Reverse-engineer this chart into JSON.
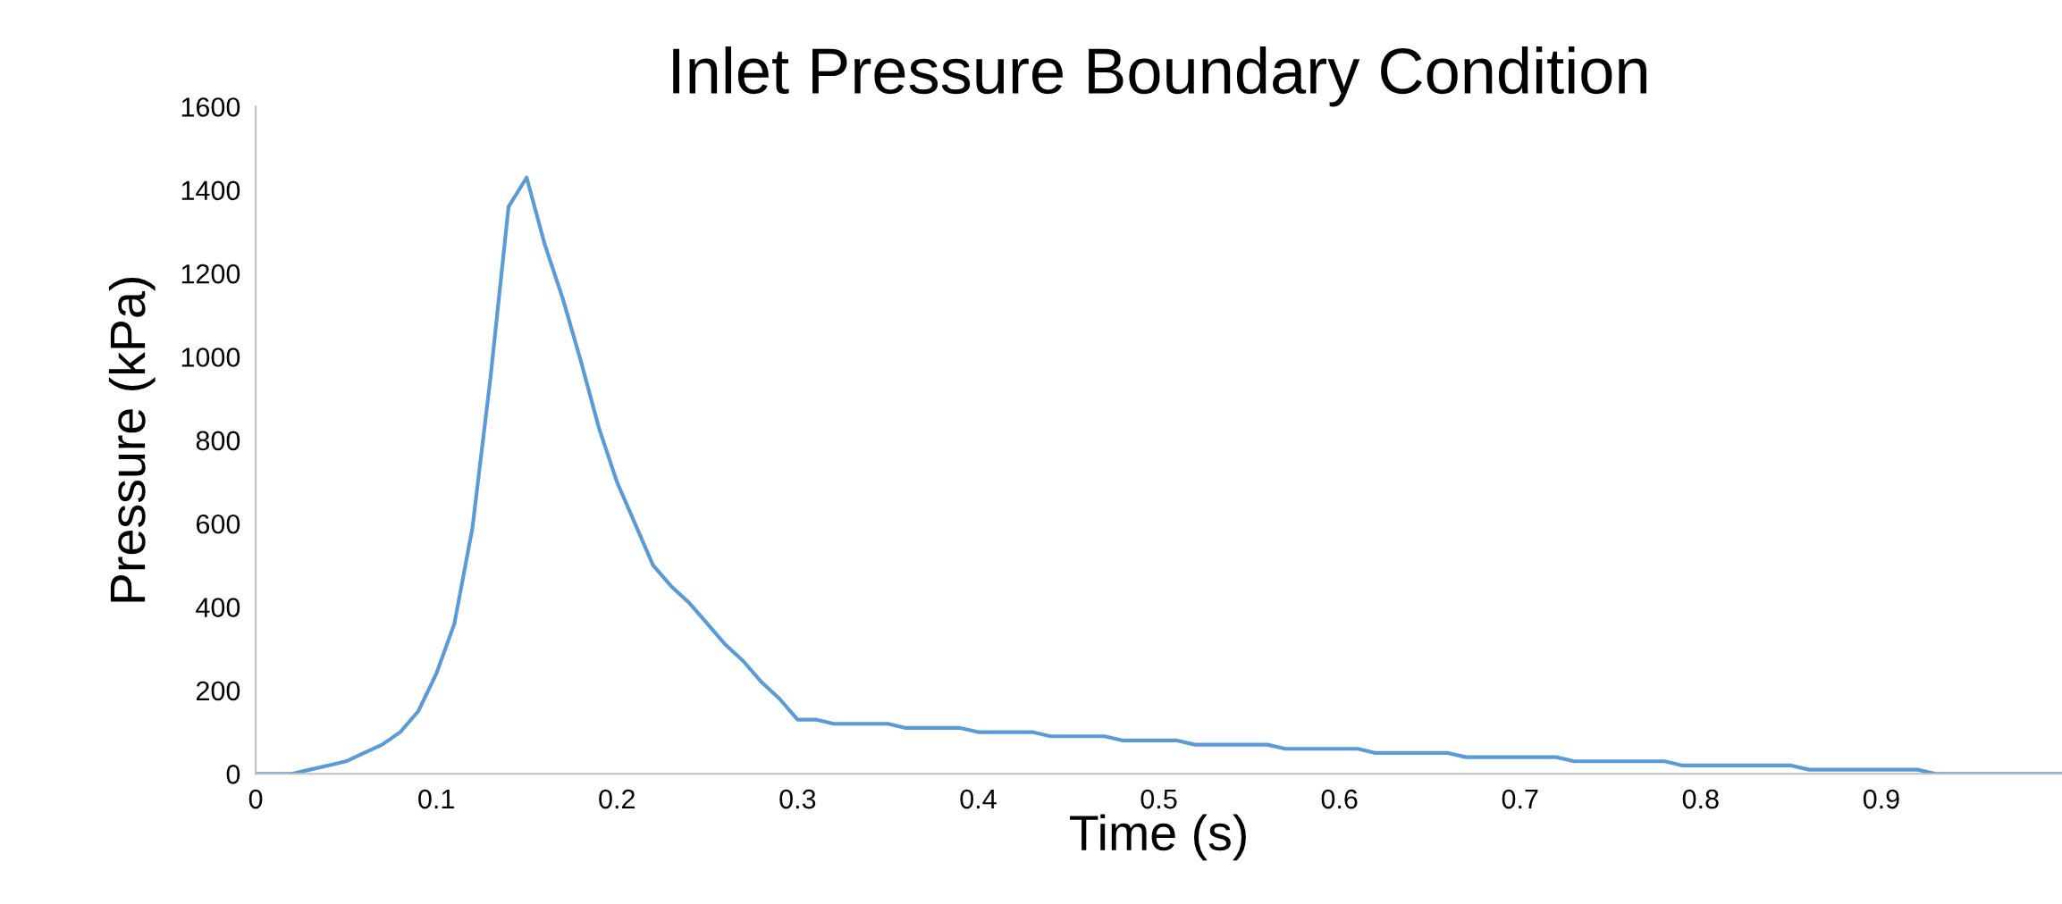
{
  "chart_data": {
    "type": "line",
    "title": "Inlet Pressure Boundary Condition",
    "xlabel": "Time (s)",
    "ylabel": "Pressure (kPa)",
    "xlim": [
      0,
      1
    ],
    "xticks": [
      0,
      0.1,
      0.2,
      0.3,
      0.4,
      0.5,
      0.6,
      0.7,
      0.8,
      0.9
    ],
    "ylim": [
      0,
      1600
    ],
    "yticks": [
      0,
      200,
      400,
      600,
      800,
      1000,
      1200,
      1400,
      1600
    ],
    "grid": false,
    "marker": "none",
    "line_style": "solid",
    "series": [
      {
        "color": "#5b9bd5",
        "x": [
          0,
          0.01,
          0.02,
          0.03,
          0.04,
          0.05,
          0.06,
          0.07,
          0.08,
          0.09,
          0.1,
          0.11,
          0.12,
          0.13,
          0.14,
          0.15,
          0.16,
          0.17,
          0.18,
          0.19,
          0.2,
          0.21,
          0.22,
          0.23,
          0.24,
          0.25,
          0.26,
          0.27,
          0.28,
          0.29,
          0.3,
          0.31,
          0.32,
          0.35,
          0.36,
          0.39,
          0.4,
          0.43,
          0.44,
          0.47,
          0.48,
          0.51,
          0.52,
          0.56,
          0.57,
          0.61,
          0.62,
          0.66,
          0.67,
          0.72,
          0.73,
          0.78,
          0.79,
          0.85,
          0.86,
          0.92,
          0.93,
          1.0
        ],
        "values": [
          0,
          0,
          0,
          10,
          20,
          30,
          50,
          70,
          100,
          150,
          240,
          360,
          590,
          950,
          1360,
          1430,
          1270,
          1140,
          990,
          830,
          700,
          600,
          500,
          450,
          410,
          360,
          310,
          270,
          220,
          180,
          130,
          130,
          120,
          120,
          110,
          110,
          100,
          100,
          90,
          90,
          80,
          80,
          70,
          70,
          60,
          60,
          50,
          50,
          40,
          40,
          30,
          30,
          20,
          20,
          10,
          10,
          0,
          0
        ]
      }
    ]
  }
}
